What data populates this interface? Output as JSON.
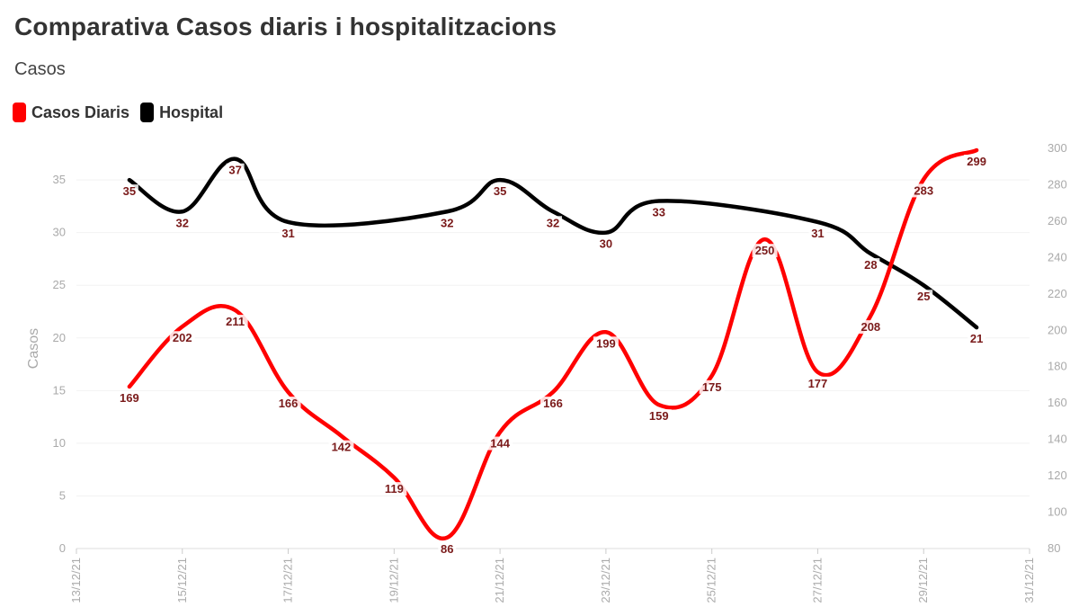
{
  "title": "Comparativa Casos diaris i hospitalitzacions",
  "subtitle": "Casos",
  "legend": [
    {
      "label": "Casos Diaris",
      "color": "#ff0000"
    },
    {
      "label": "Hospital",
      "color": "#000000"
    }
  ],
  "chart_data": {
    "type": "line",
    "x_tick_labels": [
      "13/12/21",
      "15/12/21",
      "17/12/21",
      "19/12/21",
      "21/12/21",
      "23/12/21",
      "25/12/21",
      "27/12/21",
      "29/12/21",
      "31/12/21"
    ],
    "x": [
      "14/12/21",
      "15/12/21",
      "16/12/21",
      "17/12/21",
      "18/12/21",
      "19/12/21",
      "20/12/21",
      "21/12/21",
      "22/12/21",
      "23/12/21",
      "24/12/21",
      "25/12/21",
      "26/12/21",
      "27/12/21",
      "28/12/21",
      "29/12/21",
      "30/12/21"
    ],
    "xlim": [
      "13/12/21",
      "31/12/21"
    ],
    "ylabel": "Casos",
    "ylim_left": [
      0,
      38
    ],
    "yticks_left": [
      0,
      5,
      10,
      15,
      20,
      25,
      30,
      35
    ],
    "ylim_right": [
      80,
      300
    ],
    "yticks_right": [
      80,
      100,
      120,
      140,
      160,
      180,
      200,
      220,
      240,
      260,
      280,
      300
    ],
    "series": [
      {
        "name": "Hospital",
        "axis": "left",
        "color": "#000000",
        "points": [
          {
            "x": "14/12/21",
            "y": 35
          },
          {
            "x": "15/12/21",
            "y": 32
          },
          {
            "x": "16/12/21",
            "y": 37
          },
          {
            "x": "17/12/21",
            "y": 31
          },
          {
            "x": "20/12/21",
            "y": 32
          },
          {
            "x": "21/12/21",
            "y": 35
          },
          {
            "x": "22/12/21",
            "y": 32
          },
          {
            "x": "23/12/21",
            "y": 30
          },
          {
            "x": "24/12/21",
            "y": 33
          },
          {
            "x": "27/12/21",
            "y": 31
          },
          {
            "x": "28/12/21",
            "y": 28
          },
          {
            "x": "29/12/21",
            "y": 25
          },
          {
            "x": "30/12/21",
            "y": 21
          }
        ]
      },
      {
        "name": "Casos Diaris",
        "axis": "right",
        "color": "#ff0000",
        "points": [
          {
            "x": "14/12/21",
            "y": 169
          },
          {
            "x": "15/12/21",
            "y": 202
          },
          {
            "x": "16/12/21",
            "y": 211
          },
          {
            "x": "17/12/21",
            "y": 166
          },
          {
            "x": "18/12/21",
            "y": 142
          },
          {
            "x": "19/12/21",
            "y": 119
          },
          {
            "x": "20/12/21",
            "y": 86
          },
          {
            "x": "21/12/21",
            "y": 144
          },
          {
            "x": "22/12/21",
            "y": 166
          },
          {
            "x": "23/12/21",
            "y": 199
          },
          {
            "x": "24/12/21",
            "y": 159
          },
          {
            "x": "25/12/21",
            "y": 175
          },
          {
            "x": "26/12/21",
            "y": 250
          },
          {
            "x": "27/12/21",
            "y": 177
          },
          {
            "x": "28/12/21",
            "y": 208
          },
          {
            "x": "29/12/21",
            "y": 283
          },
          {
            "x": "30/12/21",
            "y": 299
          }
        ]
      }
    ],
    "grid": true
  }
}
